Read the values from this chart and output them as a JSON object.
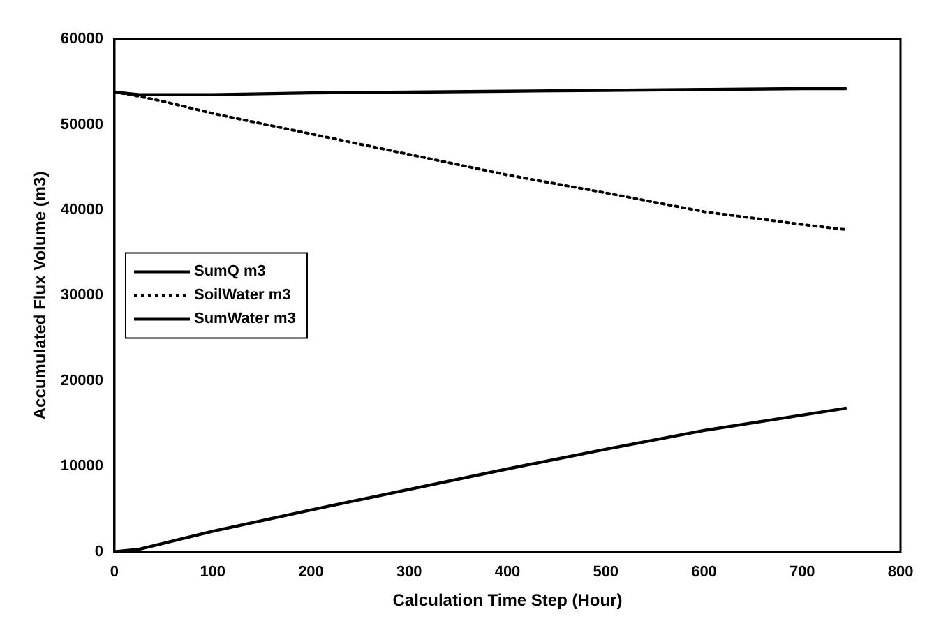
{
  "chart_data": {
    "type": "line",
    "xlabel": "Calculation Time Step (Hour)",
    "ylabel": "Accumulated Flux Volume (m3)",
    "x": [
      0,
      25,
      50,
      100,
      200,
      300,
      400,
      500,
      600,
      700,
      744
    ],
    "series": [
      {
        "name": "SumQ m3",
        "color": "#000000",
        "line_style": "solid",
        "values": [
          0,
          300,
          1000,
          2400,
          4900,
          7300,
          9700,
          12000,
          14200,
          16000,
          16800
        ]
      },
      {
        "name": "SoilWater m3",
        "color": "#000000",
        "line_style": "dotted",
        "values": [
          53800,
          53300,
          52700,
          51300,
          48900,
          46500,
          44100,
          42000,
          39800,
          38300,
          37700
        ]
      },
      {
        "name": "SumWater m3",
        "color": "#000000",
        "line_style": "solid",
        "values": [
          53800,
          53500,
          53500,
          53500,
          53700,
          53800,
          53900,
          54000,
          54100,
          54200,
          54200
        ]
      }
    ],
    "xlim": [
      0,
      800
    ],
    "xticks": [
      0,
      100,
      200,
      300,
      400,
      500,
      600,
      700,
      800
    ],
    "ylim": [
      0,
      60000
    ],
    "yticks": [
      0,
      10000,
      20000,
      30000,
      40000,
      50000,
      60000
    ],
    "grid": false,
    "legend": "left",
    "marker": "none"
  }
}
